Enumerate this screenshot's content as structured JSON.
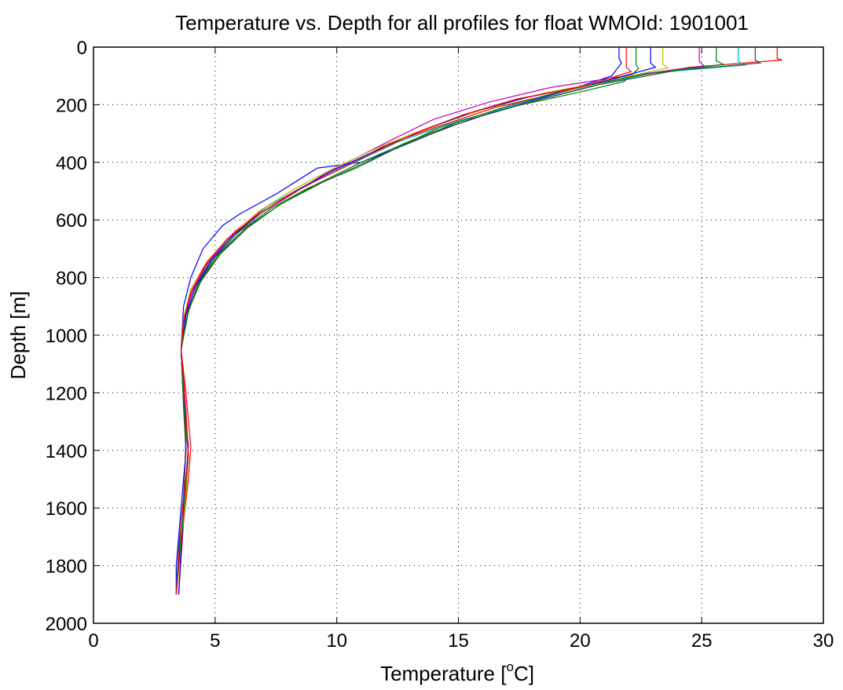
{
  "chart_data": {
    "type": "line",
    "title": "Temperature vs. Depth for all profiles for float WMOId: 1901001",
    "xlabel_main": "Temperature [",
    "xlabel_sup": "o",
    "xlabel_end": "C]",
    "ylabel": "Depth [m]",
    "xlim": [
      0,
      30
    ],
    "ylim": [
      0,
      2000
    ],
    "y_reversed": true,
    "grid": true,
    "legend": "none",
    "x_ticks": [
      "0",
      "5",
      "10",
      "15",
      "20",
      "25",
      "30"
    ],
    "y_ticks": [
      "0",
      "200",
      "400",
      "600",
      "800",
      "1000",
      "1200",
      "1400",
      "1600",
      "1800",
      "2000"
    ],
    "colors": [
      "#0000ff",
      "#008000",
      "#ff0000",
      "#00bfbf",
      "#bf00bf",
      "#bfbf00",
      "#404040"
    ],
    "series": [
      {
        "x": [
          21.6,
          21.6,
          21.7,
          21.3,
          19.5,
          17.0,
          14.5,
          12.5,
          11.0,
          9.2,
          7.5,
          6.0,
          5.3,
          4.5,
          4.0,
          3.7,
          3.6,
          3.7,
          3.8,
          3.8,
          3.7,
          3.6,
          3.4,
          3.4
        ],
        "y": [
          0,
          40,
          55,
          100,
          150,
          210,
          280,
          350,
          400,
          420,
          510,
          580,
          620,
          700,
          800,
          900,
          1050,
          1150,
          1270,
          1400,
          1500,
          1600,
          1800,
          1900
        ]
      },
      {
        "x": [
          22.3,
          22.3,
          22.4,
          21.8,
          19.8,
          16.5,
          14.2,
          12.7,
          10.8,
          8.8,
          7.3,
          6.0,
          5.0,
          4.3,
          3.9,
          3.6,
          3.7,
          3.8,
          3.9,
          3.8,
          3.6,
          3.4
        ],
        "y": [
          0,
          60,
          75,
          120,
          160,
          220,
          280,
          340,
          420,
          490,
          560,
          640,
          730,
          820,
          920,
          1050,
          1200,
          1300,
          1420,
          1550,
          1700,
          1900
        ]
      },
      {
        "x": [
          28.1,
          28.1,
          28.3,
          24.5,
          21.5,
          19.0,
          16.5,
          14.0,
          12.0,
          10.5,
          8.5,
          7.0,
          5.8,
          4.8,
          4.1,
          3.7,
          3.6,
          3.8,
          4.0,
          3.9,
          3.7,
          3.5
        ],
        "y": [
          0,
          40,
          45,
          70,
          110,
          160,
          210,
          280,
          340,
          410,
          490,
          560,
          640,
          740,
          840,
          940,
          1050,
          1200,
          1390,
          1500,
          1650,
          1900
        ]
      },
      {
        "x": [
          26.5,
          26.5,
          26.8,
          23.0,
          20.2,
          17.5,
          14.8,
          12.5,
          10.5,
          8.7,
          7.2,
          5.9,
          4.9,
          4.2,
          3.8,
          3.6,
          3.7,
          3.9,
          3.8,
          3.6,
          3.4
        ],
        "y": [
          0,
          50,
          62,
          90,
          140,
          200,
          260,
          330,
          410,
          480,
          550,
          640,
          730,
          830,
          930,
          1050,
          1220,
          1380,
          1520,
          1700,
          1900
        ]
      },
      {
        "x": [
          24.9,
          24.9,
          25.1,
          21.5,
          18.8,
          16.3,
          14.0,
          12.3,
          10.9,
          9.5,
          8.0,
          6.6,
          5.5,
          4.6,
          4.0,
          3.7,
          3.6,
          3.7,
          3.8,
          3.7,
          3.5
        ],
        "y": [
          0,
          50,
          65,
          105,
          140,
          190,
          250,
          320,
          380,
          440,
          520,
          590,
          670,
          760,
          860,
          960,
          1060,
          1200,
          1350,
          1600,
          1900
        ]
      },
      {
        "x": [
          23.4,
          23.4,
          23.6,
          21.0,
          18.5,
          16.1,
          13.9,
          11.8,
          9.9,
          8.2,
          6.8,
          5.7,
          4.7,
          4.0,
          3.7,
          3.6,
          3.7,
          3.9,
          3.8,
          3.6,
          3.4
        ],
        "y": [
          0,
          60,
          72,
          120,
          160,
          215,
          275,
          345,
          420,
          495,
          570,
          650,
          740,
          840,
          940,
          1050,
          1240,
          1410,
          1550,
          1720,
          1900
        ]
      },
      {
        "x": [
          27.2,
          27.2,
          27.4,
          24.0,
          20.8,
          18.0,
          15.5,
          13.3,
          11.3,
          9.4,
          7.7,
          6.3,
          5.2,
          4.4,
          3.9,
          3.6,
          3.7,
          3.8,
          3.7,
          3.5,
          3.4
        ],
        "y": [
          0,
          45,
          55,
          80,
          130,
          190,
          250,
          320,
          395,
          470,
          545,
          625,
          715,
          810,
          910,
          1050,
          1250,
          1400,
          1560,
          1740,
          1900
        ]
      },
      {
        "x": [
          22.9,
          22.9,
          23.1,
          20.5,
          17.8,
          15.6,
          13.5,
          11.6,
          9.8,
          8.2,
          6.9,
          5.8,
          4.9,
          4.2,
          3.8,
          3.6,
          3.7,
          3.9,
          3.7,
          3.5
        ],
        "y": [
          0,
          55,
          70,
          130,
          175,
          225,
          290,
          360,
          430,
          505,
          575,
          650,
          735,
          830,
          930,
          1050,
          1230,
          1390,
          1600,
          1900
        ]
      },
      {
        "x": [
          25.6,
          25.6,
          25.9,
          22.6,
          19.6,
          17.2,
          15.0,
          12.9,
          11.0,
          9.2,
          7.6,
          6.3,
          5.2,
          4.4,
          3.9,
          3.6,
          3.7,
          3.9,
          3.7,
          3.4
        ],
        "y": [
          0,
          48,
          60,
          95,
          145,
          200,
          260,
          330,
          400,
          475,
          550,
          630,
          720,
          815,
          915,
          1040,
          1240,
          1410,
          1620,
          1900
        ]
      },
      {
        "x": [
          21.9,
          21.9,
          22.1,
          20.2,
          17.4,
          15.2,
          13.2,
          11.4,
          9.7,
          8.1,
          6.7,
          5.5,
          4.6,
          4.0,
          3.7,
          3.6,
          3.8,
          3.9,
          3.6,
          3.4
        ],
        "y": [
          0,
          70,
          85,
          135,
          180,
          235,
          300,
          370,
          440,
          510,
          585,
          665,
          755,
          850,
          950,
          1050,
          1260,
          1420,
          1650,
          1900
        ]
      }
    ]
  }
}
